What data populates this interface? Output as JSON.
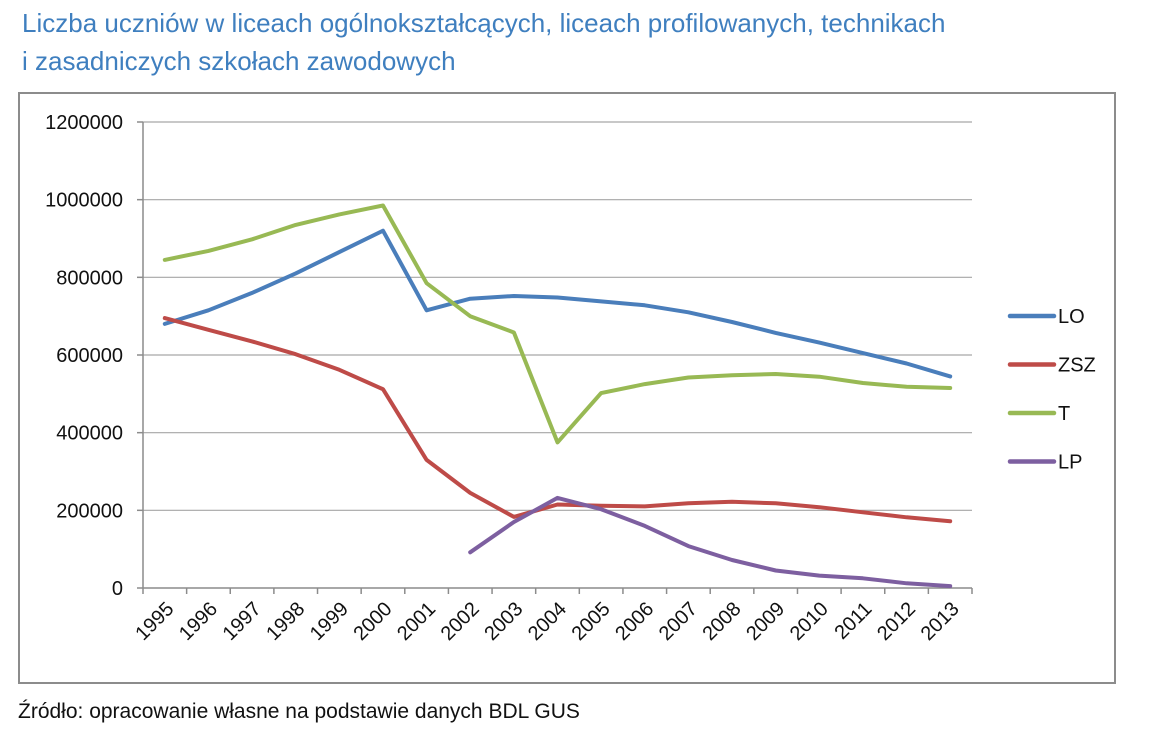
{
  "title": {
    "line1": "Liczba uczniów w liceach ogólnokształcących, liceach profilowanych, technikach",
    "line2": "i zasadniczych szkołach zawodowych"
  },
  "source": "Źródło: opracowanie własne na podstawie danych BDL GUS",
  "colors": {
    "title": "#3f7fbf",
    "grid": "#a6a6a6",
    "frame": "#8c8c8c"
  },
  "chart_data": {
    "type": "line",
    "categories": [
      "1995",
      "1996",
      "1997",
      "1998",
      "1999",
      "2000",
      "2001",
      "2002",
      "2003",
      "2004",
      "2005",
      "2006",
      "2007",
      "2008",
      "2009",
      "2010",
      "2011",
      "2012",
      "2013"
    ],
    "ylim": [
      0,
      1200000
    ],
    "yticks": [
      0,
      200000,
      400000,
      600000,
      800000,
      1000000,
      1200000
    ],
    "ytick_labels": [
      "0",
      "200000",
      "400000",
      "600000",
      "800000",
      "1000000",
      "1200000"
    ],
    "grid": true,
    "legend_position": "right",
    "series": [
      {
        "name": "LO",
        "color": "#4a7ebb",
        "values": [
          680000,
          715000,
          760000,
          810000,
          865000,
          920000,
          715000,
          745000,
          752000,
          748000,
          738000,
          728000,
          710000,
          685000,
          657000,
          632000,
          605000,
          578000,
          545000
        ]
      },
      {
        "name": "ZSZ",
        "color": "#be4b48",
        "values": [
          695000,
          665000,
          635000,
          602000,
          562000,
          512000,
          330000,
          245000,
          183000,
          215000,
          212000,
          210000,
          218000,
          222000,
          218000,
          208000,
          195000,
          182000,
          172000
        ]
      },
      {
        "name": "T",
        "color": "#98b954",
        "values": [
          845000,
          868000,
          898000,
          935000,
          962000,
          985000,
          785000,
          700000,
          658000,
          375000,
          502000,
          525000,
          542000,
          548000,
          551000,
          544000,
          528000,
          518000,
          515000
        ]
      },
      {
        "name": "LP",
        "color": "#7d5fa0",
        "values": [
          null,
          null,
          null,
          null,
          null,
          null,
          null,
          92000,
          170000,
          232000,
          203000,
          160000,
          108000,
          72000,
          45000,
          32000,
          25000,
          12000,
          5000
        ]
      }
    ]
  }
}
